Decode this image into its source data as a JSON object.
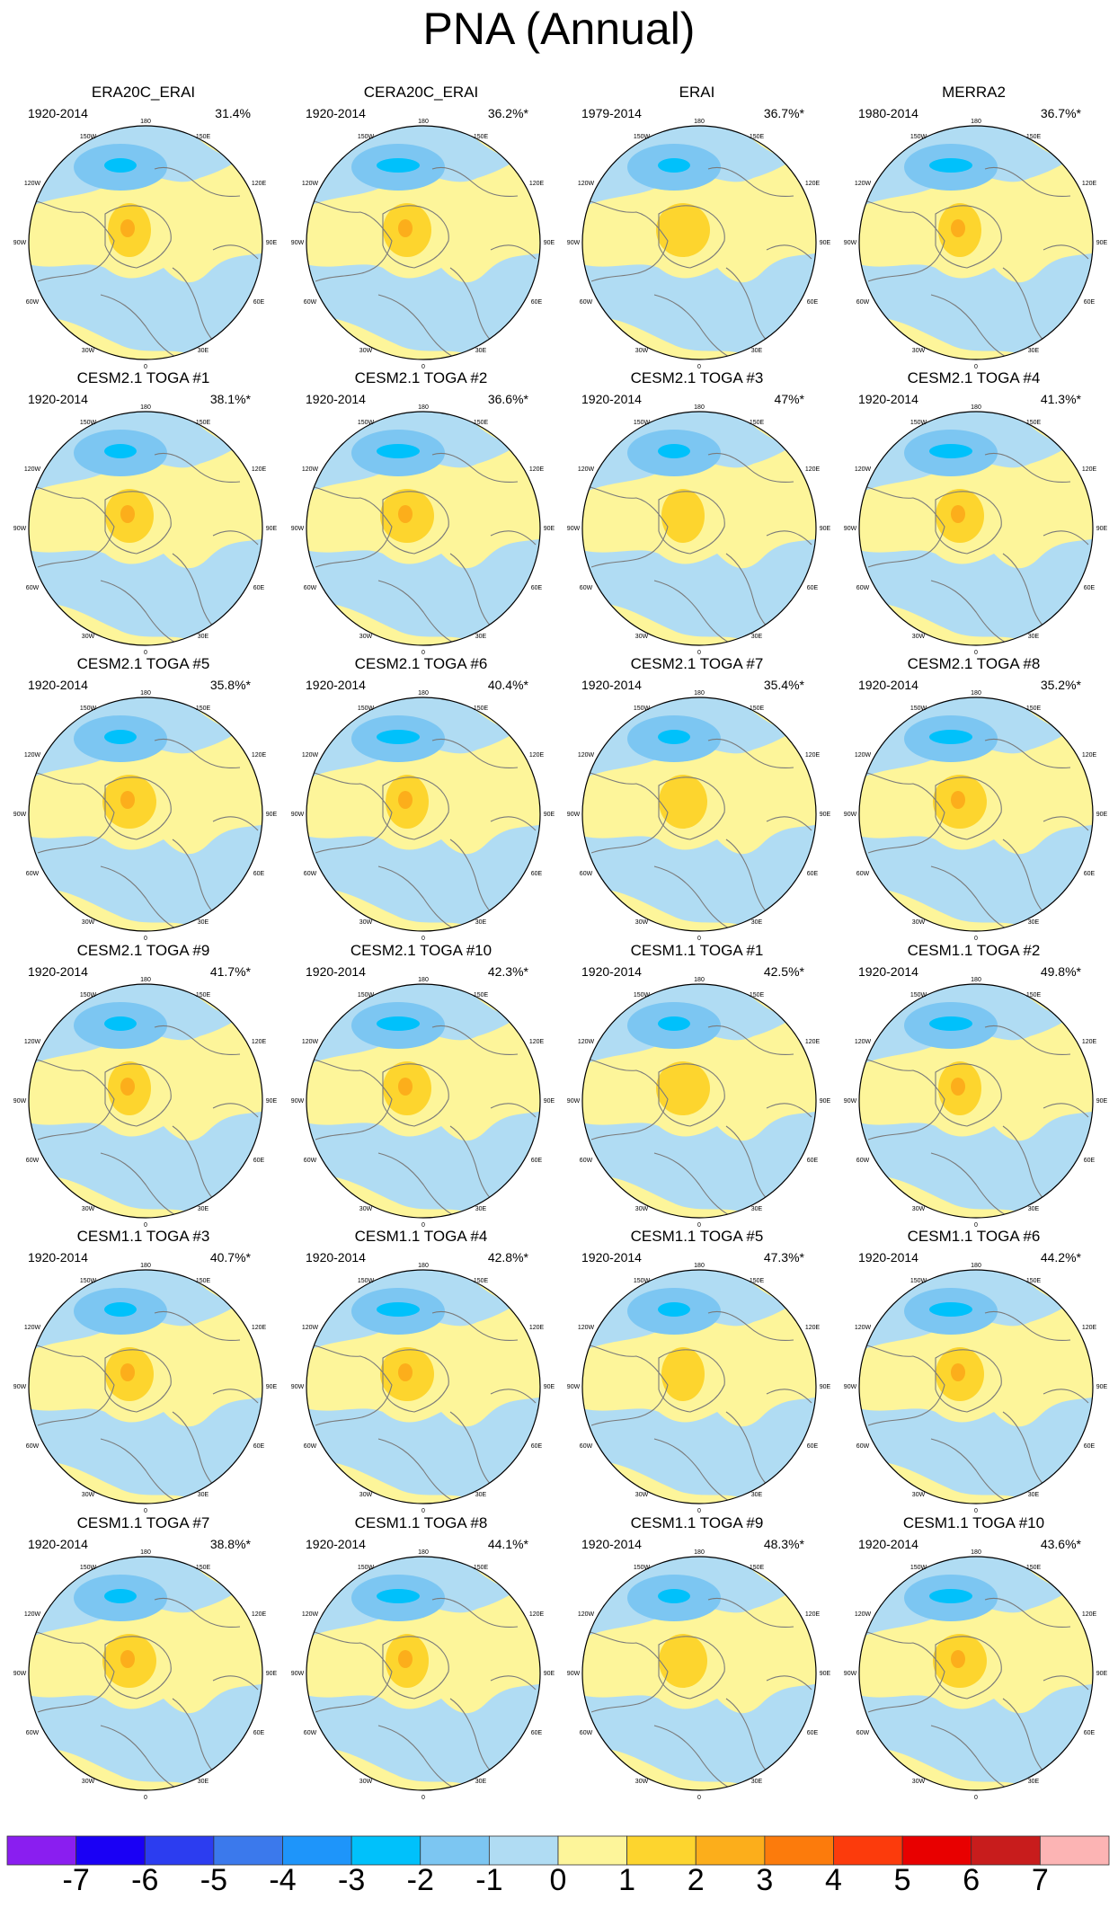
{
  "title": "PNA (Annual)",
  "colors": {
    "background": "#ffffff",
    "ocean_neg": "#b0dcf3",
    "pos_weak": "#fdf59a",
    "pos_mid": "#fdd52e",
    "pos_strong": "#fcae1b",
    "neg_mid": "#7cc6f2",
    "neg_strong": "#00c1fb",
    "coast": "#7a7a7a"
  },
  "map_labels": {
    "top": "180",
    "bottom": "0",
    "left": "90W",
    "right": "90E",
    "upper_left_1": "150W",
    "upper_left_2": "120W",
    "upper_right_1": "150E",
    "upper_right_2": "120E",
    "lower_left_1": "60W",
    "lower_left_2": "30W",
    "lower_right_1": "60E",
    "lower_right_2": "30E"
  },
  "panels": [
    {
      "title": "ERA20C_ERAI",
      "years": "1920-2014",
      "pct": "31.4%"
    },
    {
      "title": "CERA20C_ERAI",
      "years": "1920-2014",
      "pct": "36.2%*"
    },
    {
      "title": "ERAI",
      "years": "1979-2014",
      "pct": "36.7%*"
    },
    {
      "title": "MERRA2",
      "years": "1980-2014",
      "pct": "36.7%*"
    },
    {
      "title": "CESM2.1 TOGA #1",
      "years": "1920-2014",
      "pct": "38.1%*"
    },
    {
      "title": "CESM2.1 TOGA #2",
      "years": "1920-2014",
      "pct": "36.6%*"
    },
    {
      "title": "CESM2.1 TOGA #3",
      "years": "1920-2014",
      "pct": "47%*"
    },
    {
      "title": "CESM2.1 TOGA #4",
      "years": "1920-2014",
      "pct": "41.3%*"
    },
    {
      "title": "CESM2.1 TOGA #5",
      "years": "1920-2014",
      "pct": "35.8%*"
    },
    {
      "title": "CESM2.1 TOGA #6",
      "years": "1920-2014",
      "pct": "40.4%*"
    },
    {
      "title": "CESM2.1 TOGA #7",
      "years": "1920-2014",
      "pct": "35.4%*"
    },
    {
      "title": "CESM2.1 TOGA #8",
      "years": "1920-2014",
      "pct": "35.2%*"
    },
    {
      "title": "CESM2.1 TOGA #9",
      "years": "1920-2014",
      "pct": "41.7%*"
    },
    {
      "title": "CESM2.1 TOGA #10",
      "years": "1920-2014",
      "pct": "42.3%*"
    },
    {
      "title": "CESM1.1 TOGA #1",
      "years": "1920-2014",
      "pct": "42.5%*"
    },
    {
      "title": "CESM1.1 TOGA #2",
      "years": "1920-2014",
      "pct": "49.8%*"
    },
    {
      "title": "CESM1.1 TOGA #3",
      "years": "1920-2014",
      "pct": "40.7%*"
    },
    {
      "title": "CESM1.1 TOGA #4",
      "years": "1920-2014",
      "pct": "42.8%*"
    },
    {
      "title": "CESM1.1 TOGA #5",
      "years": "1920-2014",
      "pct": "47.3%*"
    },
    {
      "title": "CESM1.1 TOGA #6",
      "years": "1920-2014",
      "pct": "44.2%*"
    },
    {
      "title": "CESM1.1 TOGA #7",
      "years": "1920-2014",
      "pct": "38.8%*"
    },
    {
      "title": "CESM1.1 TOGA #8",
      "years": "1920-2014",
      "pct": "44.1%*"
    },
    {
      "title": "CESM1.1 TOGA #9",
      "years": "1920-2014",
      "pct": "48.3%*"
    },
    {
      "title": "CESM1.1 TOGA #10",
      "years": "1920-2014",
      "pct": "43.6%*"
    }
  ],
  "colorbar": {
    "colors": [
      "#8a1ef0",
      "#1a00f5",
      "#2c3df0",
      "#3b79ec",
      "#1e95fa",
      "#00c1fb",
      "#7cc6f2",
      "#b0dcf3",
      "#fdf59a",
      "#fdd52e",
      "#fcae1b",
      "#fc7b0c",
      "#fc3b0c",
      "#e80000",
      "#c81c1c",
      "#fcb4b4"
    ],
    "labels": [
      "-7",
      "-6",
      "-5",
      "-4",
      "-3",
      "-2",
      "-1",
      "0",
      "1",
      "2",
      "3",
      "4",
      "5",
      "6",
      "7"
    ]
  }
}
